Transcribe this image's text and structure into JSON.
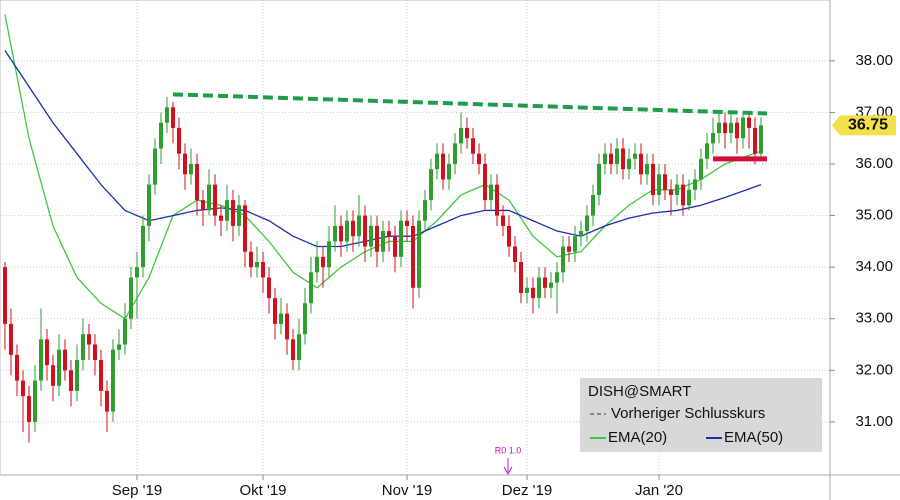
{
  "chart_data": {
    "type": "candlestick",
    "title": "DISH@SMART",
    "up_color": "#2e9e2e",
    "down_color": "#d0101e",
    "candles": [
      [
        34.0,
        34.1,
        32.4,
        32.9
      ],
      [
        32.9,
        33.2,
        31.9,
        32.3
      ],
      [
        32.3,
        32.5,
        31.5,
        31.8
      ],
      [
        31.8,
        32.0,
        30.8,
        31.5
      ],
      [
        31.5,
        31.7,
        30.6,
        31.0
      ],
      [
        31.0,
        32.1,
        30.8,
        31.8
      ],
      [
        31.8,
        33.2,
        31.6,
        32.6
      ],
      [
        32.6,
        32.8,
        31.8,
        32.1
      ],
      [
        32.1,
        32.3,
        31.4,
        31.7
      ],
      [
        31.7,
        32.7,
        31.5,
        32.4
      ],
      [
        32.4,
        32.6,
        31.8,
        32.0
      ],
      [
        32.0,
        32.2,
        31.3,
        31.6
      ],
      [
        31.6,
        32.5,
        31.4,
        32.2
      ],
      [
        32.2,
        33.0,
        32.0,
        32.7
      ],
      [
        32.7,
        32.9,
        32.2,
        32.5
      ],
      [
        32.5,
        32.7,
        31.9,
        32.2
      ],
      [
        32.2,
        32.4,
        31.3,
        31.6
      ],
      [
        31.6,
        31.8,
        30.8,
        31.2
      ],
      [
        31.2,
        32.6,
        31.0,
        32.4
      ],
      [
        32.4,
        32.8,
        32.2,
        32.5
      ],
      [
        32.5,
        33.3,
        32.3,
        33.0
      ],
      [
        33.0,
        34.0,
        32.8,
        33.8
      ],
      [
        33.8,
        34.3,
        33.0,
        34.0
      ],
      [
        34.0,
        35.0,
        33.8,
        34.8
      ],
      [
        34.8,
        35.8,
        34.5,
        35.6
      ],
      [
        35.6,
        36.5,
        35.4,
        36.3
      ],
      [
        36.3,
        37.0,
        36.0,
        36.8
      ],
      [
        36.8,
        37.3,
        36.6,
        37.1
      ],
      [
        37.1,
        37.2,
        36.4,
        36.7
      ],
      [
        36.7,
        36.9,
        35.9,
        36.2
      ],
      [
        36.2,
        36.4,
        35.5,
        35.8
      ],
      [
        35.8,
        36.3,
        35.6,
        36.0
      ],
      [
        36.0,
        36.2,
        35.0,
        35.3
      ],
      [
        35.3,
        35.5,
        34.8,
        35.1
      ],
      [
        35.1,
        35.9,
        35.0,
        35.6
      ],
      [
        35.6,
        35.8,
        34.8,
        35.0
      ],
      [
        35.0,
        35.2,
        34.6,
        34.9
      ],
      [
        34.9,
        35.6,
        34.7,
        35.3
      ],
      [
        35.3,
        35.5,
        34.5,
        34.8
      ],
      [
        34.8,
        35.4,
        34.6,
        35.2
      ],
      [
        35.2,
        35.3,
        34.0,
        34.3
      ],
      [
        34.3,
        34.5,
        33.8,
        34.0
      ],
      [
        34.0,
        34.4,
        33.8,
        34.1
      ],
      [
        34.1,
        34.3,
        33.5,
        33.8
      ],
      [
        33.8,
        34.0,
        33.1,
        33.4
      ],
      [
        33.4,
        33.6,
        32.6,
        32.9
      ],
      [
        32.9,
        33.4,
        32.7,
        33.1
      ],
      [
        33.1,
        33.3,
        32.3,
        32.6
      ],
      [
        32.6,
        32.8,
        32.0,
        32.2
      ],
      [
        32.2,
        33.0,
        32.0,
        32.7
      ],
      [
        32.7,
        33.6,
        32.5,
        33.3
      ],
      [
        33.3,
        34.2,
        33.1,
        33.9
      ],
      [
        33.9,
        34.5,
        33.7,
        34.2
      ],
      [
        34.2,
        34.4,
        33.6,
        34.0
      ],
      [
        34.0,
        34.8,
        33.8,
        34.5
      ],
      [
        34.5,
        35.2,
        34.3,
        34.8
      ],
      [
        34.8,
        35.0,
        34.2,
        34.5
      ],
      [
        34.5,
        35.1,
        34.3,
        34.9
      ],
      [
        34.9,
        35.1,
        34.3,
        34.6
      ],
      [
        34.6,
        35.4,
        34.4,
        35.0
      ],
      [
        35.0,
        35.2,
        34.1,
        34.4
      ],
      [
        34.4,
        35.0,
        34.2,
        34.8
      ],
      [
        34.8,
        35.0,
        34.0,
        34.3
      ],
      [
        34.3,
        34.9,
        34.1,
        34.7
      ],
      [
        34.7,
        34.9,
        34.3,
        34.6
      ],
      [
        34.6,
        34.8,
        33.9,
        34.2
      ],
      [
        34.2,
        35.1,
        34.0,
        34.9
      ],
      [
        34.9,
        35.1,
        34.5,
        34.8
      ],
      [
        34.8,
        35.0,
        33.2,
        33.6
      ],
      [
        33.6,
        35.1,
        33.4,
        34.9
      ],
      [
        34.9,
        35.5,
        34.7,
        35.3
      ],
      [
        35.3,
        36.1,
        35.1,
        35.9
      ],
      [
        35.9,
        36.4,
        35.7,
        36.2
      ],
      [
        36.2,
        36.4,
        35.5,
        35.7
      ],
      [
        35.7,
        36.2,
        35.5,
        36.0
      ],
      [
        36.0,
        36.6,
        35.8,
        36.4
      ],
      [
        36.4,
        37.0,
        36.2,
        36.7
      ],
      [
        36.7,
        36.9,
        36.3,
        36.5
      ],
      [
        36.5,
        36.7,
        36.0,
        36.2
      ],
      [
        36.2,
        36.4,
        35.8,
        36.0
      ],
      [
        36.0,
        36.2,
        35.1,
        35.3
      ],
      [
        35.3,
        35.8,
        35.1,
        35.6
      ],
      [
        35.6,
        35.8,
        34.8,
        35.0
      ],
      [
        35.0,
        35.2,
        34.6,
        34.8
      ],
      [
        34.8,
        35.0,
        34.2,
        34.4
      ],
      [
        34.4,
        34.6,
        33.9,
        34.1
      ],
      [
        34.1,
        34.3,
        33.3,
        33.5
      ],
      [
        33.5,
        33.8,
        33.3,
        33.6
      ],
      [
        33.6,
        33.8,
        33.1,
        33.4
      ],
      [
        33.4,
        34.0,
        33.2,
        33.8
      ],
      [
        33.8,
        34.0,
        33.4,
        33.6
      ],
      [
        33.6,
        33.9,
        33.4,
        33.7
      ],
      [
        33.7,
        34.1,
        33.1,
        33.9
      ],
      [
        33.9,
        34.6,
        33.7,
        34.4
      ],
      [
        34.4,
        34.6,
        34.1,
        34.3
      ],
      [
        34.3,
        34.8,
        34.1,
        34.6
      ],
      [
        34.6,
        34.9,
        34.4,
        34.7
      ],
      [
        34.7,
        35.2,
        34.5,
        35.0
      ],
      [
        35.0,
        35.6,
        34.8,
        35.4
      ],
      [
        35.4,
        36.2,
        35.2,
        36.0
      ],
      [
        36.0,
        36.4,
        35.8,
        36.2
      ],
      [
        36.2,
        36.4,
        35.8,
        36.0
      ],
      [
        36.0,
        36.5,
        35.8,
        36.3
      ],
      [
        36.3,
        36.5,
        35.7,
        35.9
      ],
      [
        35.9,
        36.3,
        35.7,
        36.1
      ],
      [
        36.1,
        36.4,
        35.9,
        36.2
      ],
      [
        36.2,
        36.4,
        35.6,
        35.8
      ],
      [
        35.8,
        36.2,
        35.6,
        36.0
      ],
      [
        36.0,
        36.2,
        35.2,
        35.4
      ],
      [
        35.4,
        36.0,
        35.2,
        35.8
      ],
      [
        35.8,
        36.0,
        35.3,
        35.5
      ],
      [
        35.5,
        35.7,
        35.0,
        35.4
      ],
      [
        35.4,
        35.8,
        35.2,
        35.6
      ],
      [
        35.6,
        35.8,
        35.0,
        35.2
      ],
      [
        35.2,
        35.7,
        35.1,
        35.5
      ],
      [
        35.5,
        35.9,
        35.3,
        35.7
      ],
      [
        35.7,
        36.3,
        35.5,
        36.1
      ],
      [
        36.1,
        36.6,
        35.9,
        36.4
      ],
      [
        36.4,
        36.9,
        36.2,
        36.6
      ],
      [
        36.6,
        37.0,
        36.4,
        36.8
      ],
      [
        36.8,
        37.0,
        36.3,
        36.6
      ],
      [
        36.6,
        37.0,
        36.4,
        36.8
      ],
      [
        36.8,
        36.9,
        36.2,
        36.5
      ],
      [
        36.5,
        37.0,
        36.3,
        36.9
      ],
      [
        36.9,
        37.0,
        36.3,
        36.7
      ],
      [
        36.7,
        36.9,
        36.0,
        36.2
      ],
      [
        36.2,
        36.9,
        36.1,
        36.75
      ]
    ],
    "series": [
      {
        "name": "EMA(20)",
        "color": "#3fc83f",
        "x": [
          0,
          4,
          8,
          12,
          16,
          20,
          24,
          28,
          32,
          36,
          40,
          44,
          48,
          52,
          56,
          60,
          64,
          68,
          72,
          76,
          80,
          84,
          88,
          92,
          96,
          100,
          104,
          108,
          112,
          116,
          120,
          126
        ],
        "values": [
          38.9,
          36.5,
          34.8,
          33.8,
          33.3,
          33.0,
          33.8,
          35.0,
          35.3,
          35.2,
          35.0,
          34.5,
          33.9,
          33.6,
          34.0,
          34.3,
          34.5,
          34.5,
          34.9,
          35.4,
          35.6,
          35.3,
          34.6,
          34.2,
          34.3,
          34.8,
          35.2,
          35.5,
          35.5,
          35.7,
          36.0,
          36.25
        ]
      },
      {
        "name": "EMA(50)",
        "color": "#1a2fb0",
        "x": [
          0,
          4,
          8,
          12,
          16,
          20,
          24,
          28,
          32,
          36,
          40,
          44,
          48,
          52,
          56,
          60,
          64,
          68,
          72,
          76,
          80,
          84,
          88,
          92,
          96,
          100,
          104,
          108,
          112,
          116,
          120,
          126
        ],
        "values": [
          38.2,
          37.5,
          36.8,
          36.2,
          35.6,
          35.1,
          34.9,
          35.0,
          35.1,
          35.15,
          35.1,
          34.9,
          34.6,
          34.4,
          34.4,
          34.5,
          34.6,
          34.6,
          34.8,
          35.0,
          35.1,
          35.1,
          34.9,
          34.7,
          34.6,
          34.8,
          34.95,
          35.05,
          35.1,
          35.2,
          35.35,
          35.6
        ]
      }
    ],
    "trend_line": {
      "color": "#1f9e4a",
      "x": [
        28,
        127
      ],
      "values": [
        37.35,
        36.98
      ]
    },
    "support_line": {
      "color": "#d0103a",
      "x": [
        118,
        127
      ],
      "values": [
        36.1,
        36.1
      ]
    },
    "last_price": 36.75,
    "prev_close_label": "Vorheriger Schlusskurs",
    "marker_label": "R0 1.0",
    "xlim": [
      -0.83,
      137.5
    ],
    "ylim": [
      29.97,
      39.18
    ],
    "xticks": [
      {
        "value": 22,
        "label": "Sep '19"
      },
      {
        "value": 43,
        "label": "Okt '19"
      },
      {
        "value": 67,
        "label": "Nov '19"
      },
      {
        "value": 87,
        "label": "Dez '19"
      },
      {
        "value": 109,
        "label": "Jan '20"
      }
    ],
    "yticks": [
      {
        "value": 31,
        "label": "31.00"
      },
      {
        "value": 32,
        "label": "32.00"
      },
      {
        "value": 33,
        "label": "33.00"
      },
      {
        "value": 34,
        "label": "34.00"
      },
      {
        "value": 35,
        "label": "35.00"
      },
      {
        "value": 36,
        "label": "36.00"
      },
      {
        "value": 37,
        "label": "37.00"
      },
      {
        "value": 38,
        "label": "38.00"
      }
    ],
    "grid": true
  }
}
